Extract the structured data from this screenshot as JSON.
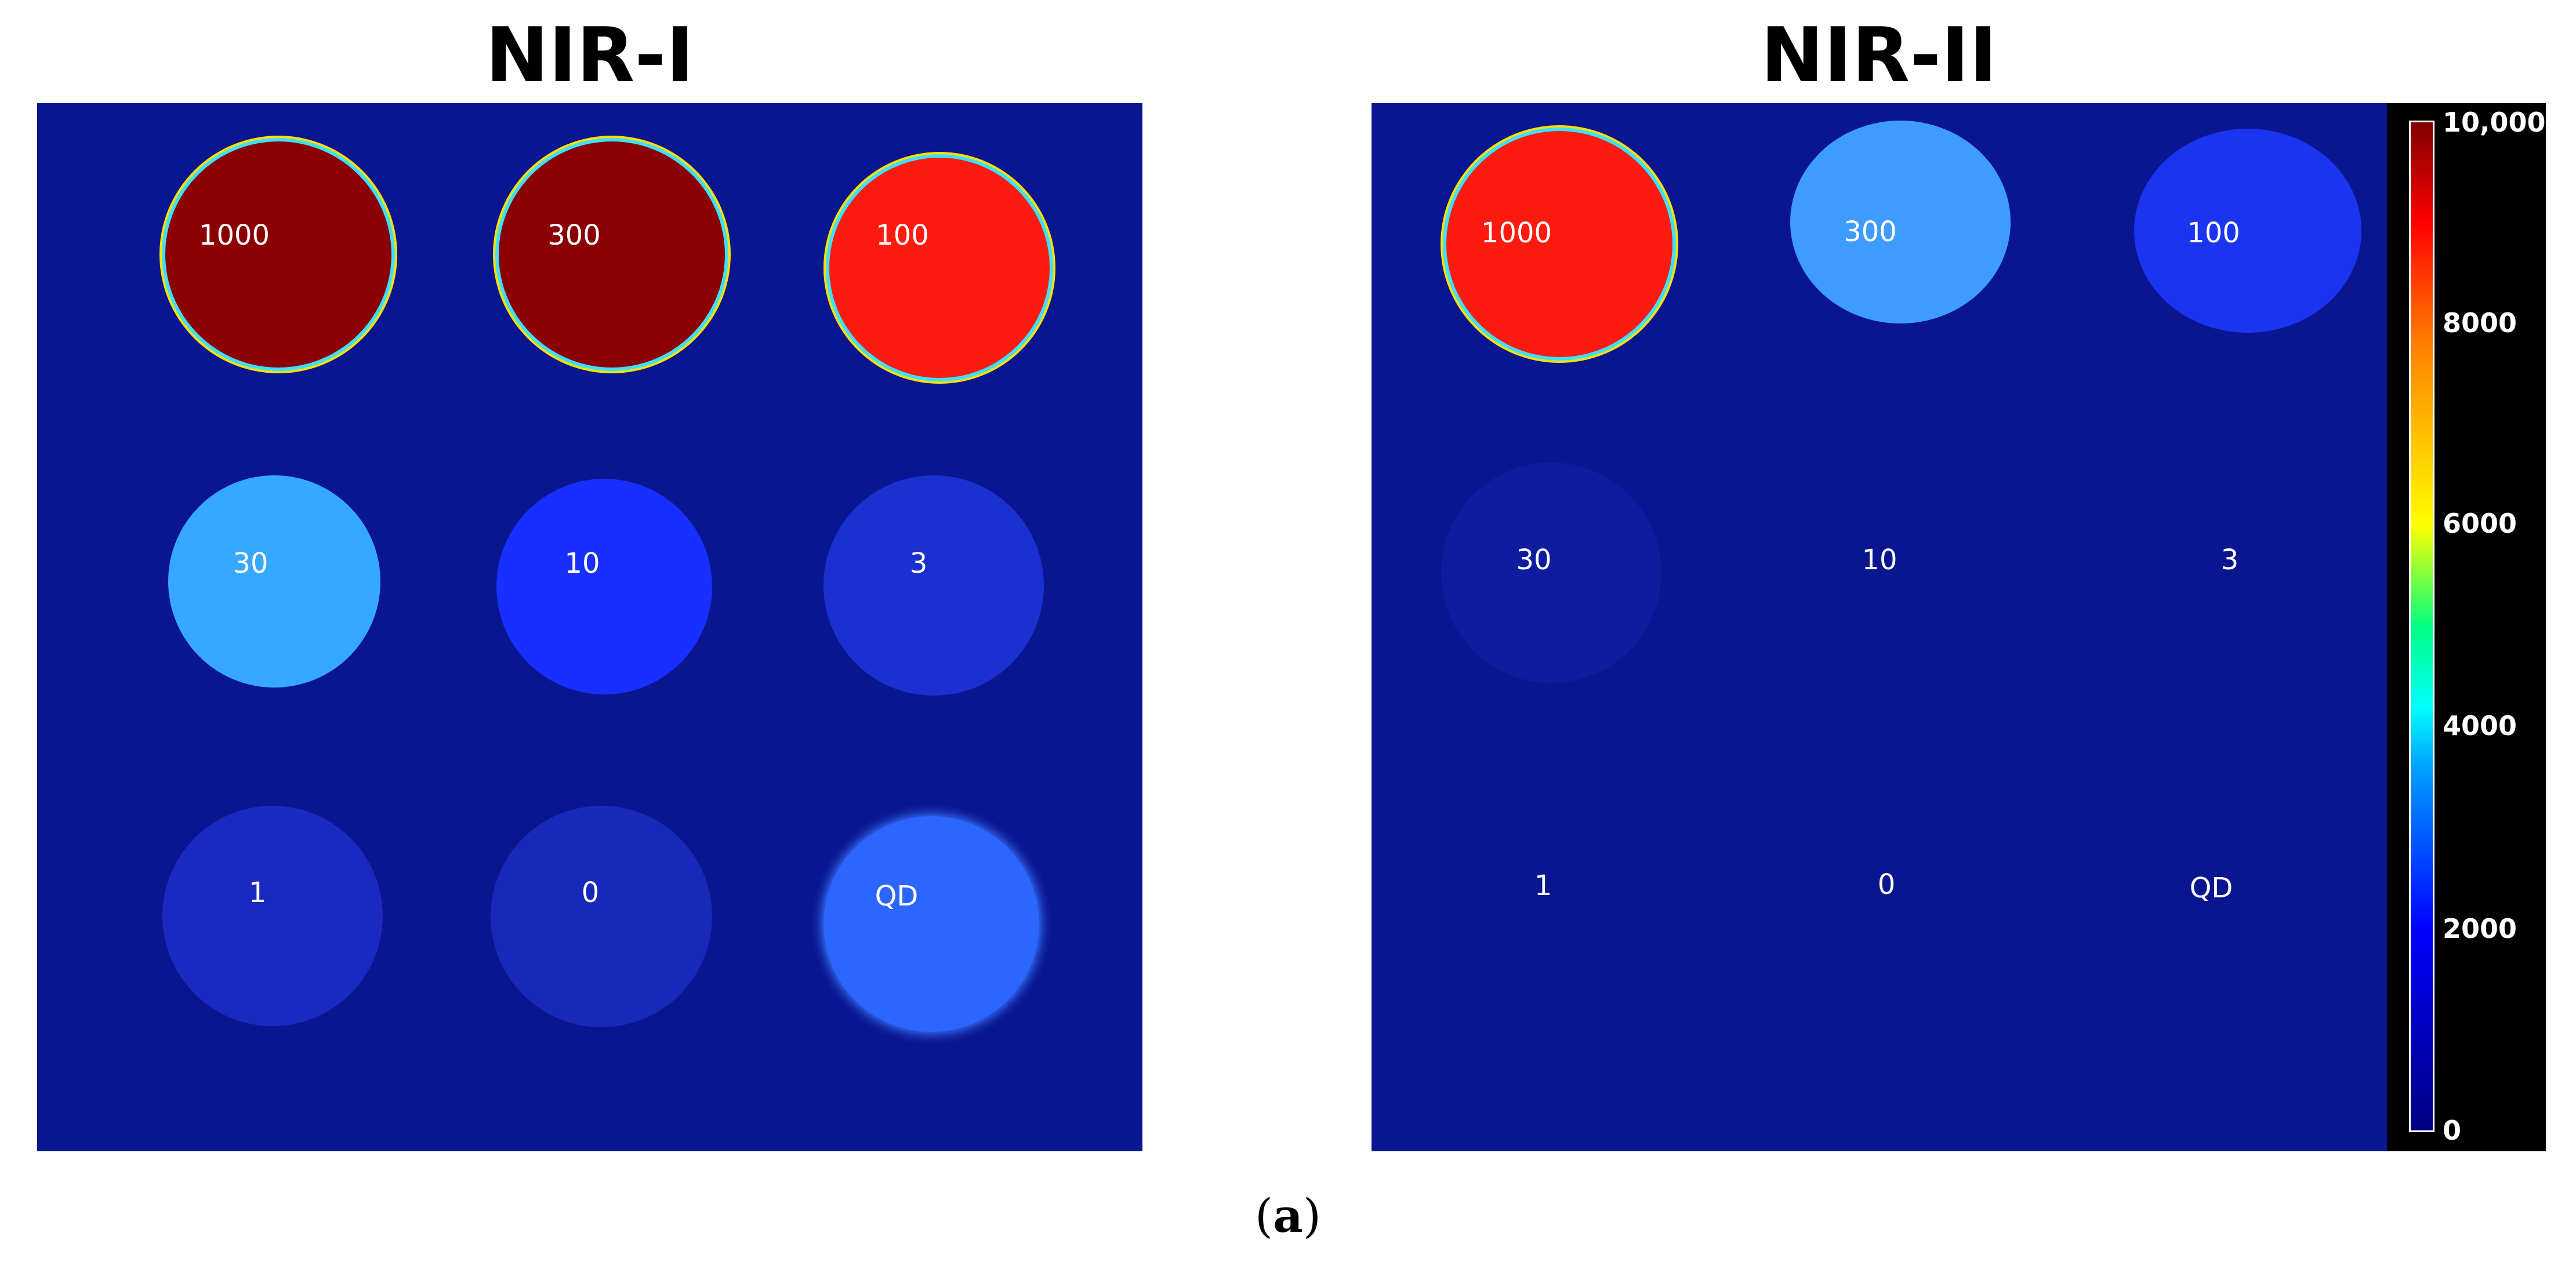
{
  "panels": [
    {
      "title": "NIR-I",
      "wells": [
        {
          "label": "1000"
        },
        {
          "label": "300"
        },
        {
          "label": "100"
        },
        {
          "label": "30"
        },
        {
          "label": "10"
        },
        {
          "label": "3"
        },
        {
          "label": "1"
        },
        {
          "label": "0"
        },
        {
          "label": "QD"
        }
      ]
    },
    {
      "title": "NIR-II",
      "wells": [
        {
          "label": "1000"
        },
        {
          "label": "300"
        },
        {
          "label": "100"
        },
        {
          "label": "30"
        },
        {
          "label": "10"
        },
        {
          "label": "3"
        },
        {
          "label": "1"
        },
        {
          "label": "0"
        },
        {
          "label": "QD"
        }
      ]
    }
  ],
  "colorbar": {
    "ticks": [
      "10,000",
      "8000",
      "6000",
      "4000",
      "2000",
      "0"
    ],
    "colors": [
      "#800000",
      "#ff0000",
      "#ff8000",
      "#ffff00",
      "#00ff80",
      "#00ffff",
      "#00a0ff",
      "#0000ff",
      "#000080"
    ]
  },
  "caption": {
    "open": "(",
    "letter": "a",
    "close": ")"
  },
  "colors": {
    "background": "#0a1690",
    "saturated": "#8b0000",
    "high": "#ff1a10"
  }
}
